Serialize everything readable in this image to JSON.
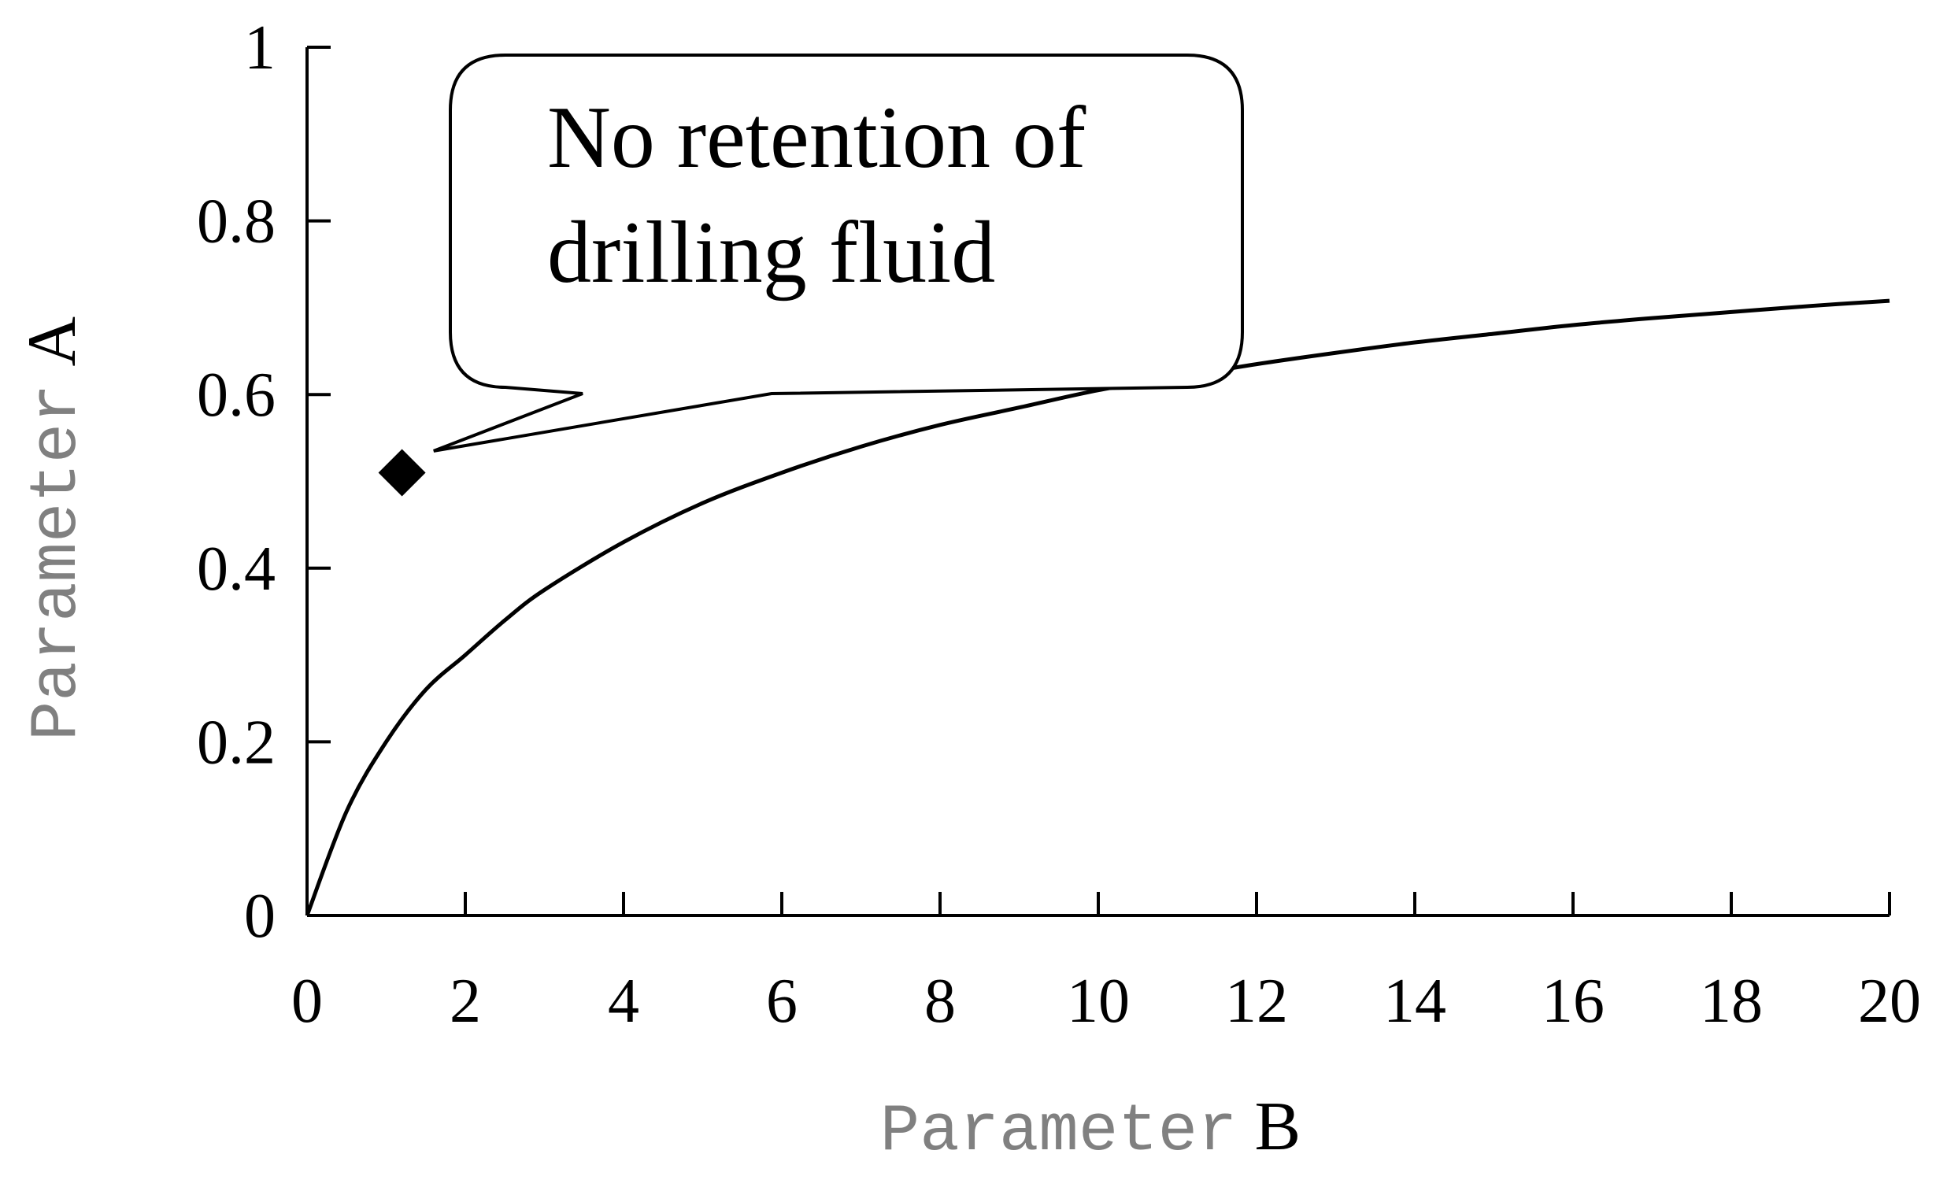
{
  "chart_data": {
    "type": "line",
    "title": "",
    "x_axis": {
      "label_prefix": "Parameter",
      "label_letter": "B",
      "range": [
        0,
        20
      ],
      "ticks": [
        0,
        2,
        4,
        6,
        8,
        10,
        12,
        14,
        16,
        18,
        20
      ]
    },
    "y_axis": {
      "label_prefix": "Parameter",
      "label_letter": "A",
      "range": [
        0,
        1
      ],
      "ticks": [
        {
          "value": 0,
          "label": "0"
        },
        {
          "value": 0.2,
          "label": "0.2"
        },
        {
          "value": 0.4,
          "label": "0.4"
        },
        {
          "value": 0.6,
          "label": "0.6"
        },
        {
          "value": 0.8,
          "label": "0.8"
        },
        {
          "value": 1,
          "label": "1"
        }
      ]
    },
    "grid": false,
    "legend": "none",
    "series": [
      {
        "x": [
          0,
          0.5,
          1,
          1.5,
          2,
          2.5,
          3,
          4,
          5,
          6,
          7,
          8,
          9,
          10,
          11,
          12,
          13,
          14,
          15,
          16,
          17,
          18,
          19,
          20
        ],
        "y": [
          0,
          0.12,
          0.2,
          0.26,
          0.3,
          0.34,
          0.375,
          0.43,
          0.475,
          0.51,
          0.54,
          0.565,
          0.585,
          0.605,
          0.62,
          0.635,
          0.648,
          0.66,
          0.67,
          0.68,
          0.688,
          0.695,
          0.702,
          0.708
        ],
        "color": "#000000"
      }
    ],
    "points": [
      {
        "x": 1.2,
        "y": 0.51,
        "marker": "diamond",
        "color": "#000000"
      }
    ],
    "annotations": [
      {
        "lines": [
          "No retention of",
          "drilling fluid"
        ],
        "points_to": {
          "x": 1.6,
          "y": 0.535
        }
      }
    ]
  }
}
